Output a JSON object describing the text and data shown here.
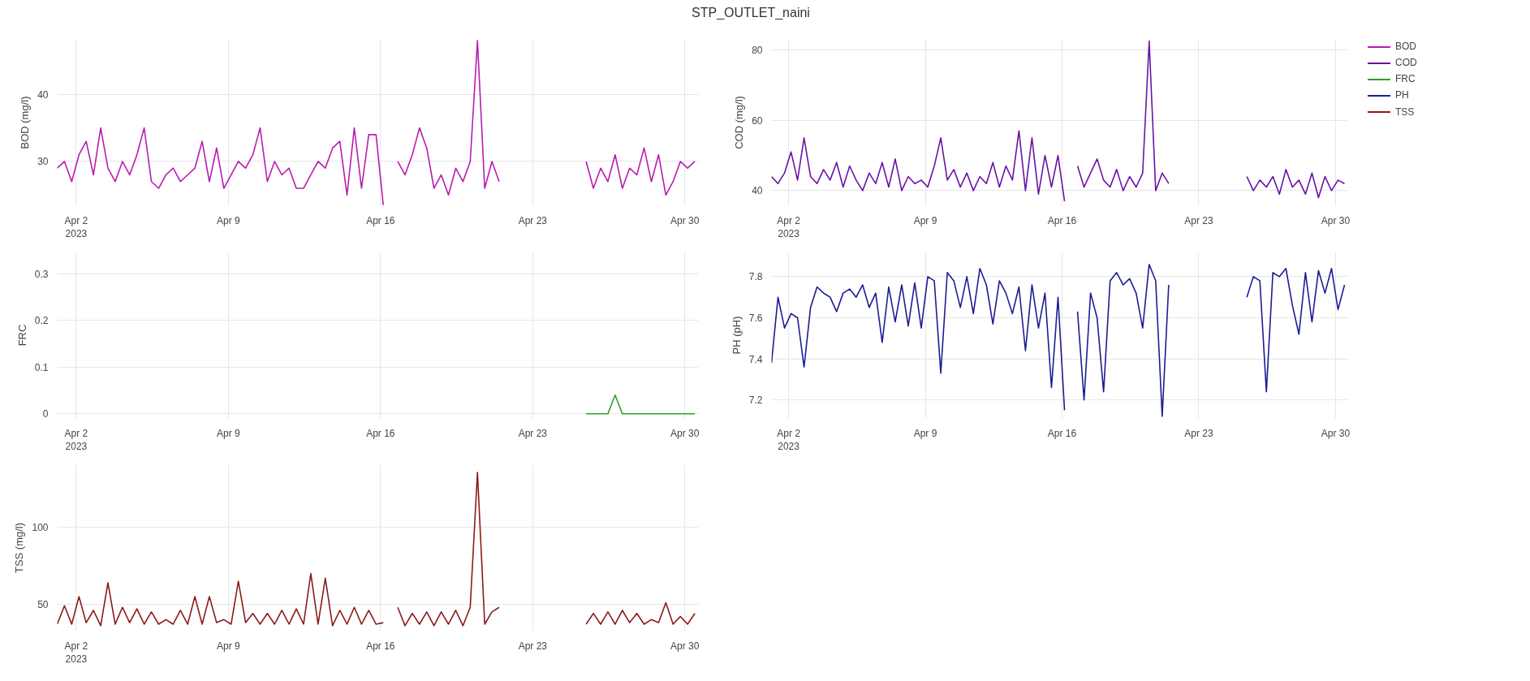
{
  "chart_data": [
    {
      "type": "line",
      "title": "STP_OUTLET_naini",
      "ylabel": "BOD (mg/l)",
      "grid": true,
      "legend": "right",
      "x": [
        "2023-04-01T03:00",
        "2023-04-01T11:00",
        "2023-04-01T19:00",
        "2023-04-02T03:00",
        "2023-04-02T11:00",
        "2023-04-02T19:00",
        "2023-04-03T03:00",
        "2023-04-03T11:00",
        "2023-04-03T19:00",
        "2023-04-04T03:00",
        "2023-04-04T11:00",
        "2023-04-04T19:00",
        "2023-04-05T03:00",
        "2023-04-05T11:00",
        "2023-04-05T19:00",
        "2023-04-06T03:00",
        "2023-04-06T11:00",
        "2023-04-06T19:00",
        "2023-04-07T03:00",
        "2023-04-07T11:00",
        "2023-04-07T19:00",
        "2023-04-08T03:00",
        "2023-04-08T11:00",
        "2023-04-08T19:00",
        "2023-04-09T03:00",
        "2023-04-09T11:00",
        "2023-04-09T19:00",
        "2023-04-10T03:00",
        "2023-04-10T11:00",
        "2023-04-10T19:00",
        "2023-04-11T03:00",
        "2023-04-11T11:00",
        "2023-04-11T19:00",
        "2023-04-12T03:00",
        "2023-04-12T11:00",
        "2023-04-12T19:00",
        "2023-04-13T03:00",
        "2023-04-13T11:00",
        "2023-04-13T19:00",
        "2023-04-14T03:00",
        "2023-04-14T11:00",
        "2023-04-14T19:00",
        "2023-04-15T03:00",
        "2023-04-15T11:00",
        "2023-04-15T19:00",
        "2023-04-16T03:00",
        "2023-04-16T11:00",
        "2023-04-16T19:00",
        "2023-04-17T03:00",
        "2023-04-17T11:00",
        "2023-04-17T19:00",
        "2023-04-18T03:00",
        "2023-04-18T11:00",
        "2023-04-18T19:00",
        "2023-04-19T03:00",
        "2023-04-19T11:00",
        "2023-04-19T19:00",
        "2023-04-20T03:00",
        "2023-04-20T11:00",
        "2023-04-20T19:00",
        "2023-04-21T03:00",
        "2023-04-21T11:00",
        "2023-04-21T19:00",
        "2023-04-25T11:00",
        "2023-04-25T19:00",
        "2023-04-26T03:00",
        "2023-04-26T11:00",
        "2023-04-26T19:00",
        "2023-04-27T03:00",
        "2023-04-27T11:00",
        "2023-04-27T19:00",
        "2023-04-28T03:00",
        "2023-04-28T11:00",
        "2023-04-28T19:00",
        "2023-04-29T03:00",
        "2023-04-29T11:00",
        "2023-04-29T19:00",
        "2023-04-30T03:00",
        "2023-04-30T11:00"
      ],
      "xlim": [
        "2023-04-01T03:00",
        "2023-04-30T15:00"
      ],
      "xticks": [
        {
          "value": "2023-04-02",
          "label": "Apr 2\n2023"
        },
        {
          "value": "2023-04-09",
          "label": "Apr 9"
        },
        {
          "value": "2023-04-16",
          "label": "Apr 16"
        },
        {
          "value": "2023-04-23",
          "label": "Apr 23"
        },
        {
          "value": "2023-04-30",
          "label": "Apr 30"
        }
      ],
      "ylim": [
        23.4,
        48.2
      ],
      "yticks": [
        30,
        40
      ],
      "series": [
        {
          "name": "BOD",
          "color": "#b81cb0",
          "values": [
            29,
            30,
            27,
            31,
            33,
            28,
            35,
            29,
            27,
            30,
            28,
            31,
            35,
            27,
            26,
            28,
            29,
            27,
            28,
            29,
            33,
            27,
            32,
            26,
            28,
            30,
            29,
            31,
            35,
            27,
            30,
            28,
            29,
            26,
            26,
            28,
            30,
            29,
            32,
            33,
            25,
            35,
            26,
            34,
            34,
            23.5,
            null,
            30,
            28,
            31,
            35,
            32,
            26,
            28,
            25,
            29,
            27,
            30,
            48,
            26,
            30,
            27,
            null,
            30,
            26,
            29,
            27,
            31,
            26,
            29,
            28,
            32,
            27,
            31,
            25,
            27,
            30,
            29,
            30
          ]
        }
      ]
    },
    {
      "type": "line",
      "ylabel": "COD (mg/l)",
      "grid": true,
      "legend": "right",
      "x": [
        "2023-04-01T03:00",
        "2023-04-01T11:00",
        "2023-04-01T19:00",
        "2023-04-02T03:00",
        "2023-04-02T11:00",
        "2023-04-02T19:00",
        "2023-04-03T03:00",
        "2023-04-03T11:00",
        "2023-04-03T19:00",
        "2023-04-04T03:00",
        "2023-04-04T11:00",
        "2023-04-04T19:00",
        "2023-04-05T03:00",
        "2023-04-05T11:00",
        "2023-04-05T19:00",
        "2023-04-06T03:00",
        "2023-04-06T11:00",
        "2023-04-06T19:00",
        "2023-04-07T03:00",
        "2023-04-07T11:00",
        "2023-04-07T19:00",
        "2023-04-08T03:00",
        "2023-04-08T11:00",
        "2023-04-08T19:00",
        "2023-04-09T03:00",
        "2023-04-09T11:00",
        "2023-04-09T19:00",
        "2023-04-10T03:00",
        "2023-04-10T11:00",
        "2023-04-10T19:00",
        "2023-04-11T03:00",
        "2023-04-11T11:00",
        "2023-04-11T19:00",
        "2023-04-12T03:00",
        "2023-04-12T11:00",
        "2023-04-12T19:00",
        "2023-04-13T03:00",
        "2023-04-13T11:00",
        "2023-04-13T19:00",
        "2023-04-14T03:00",
        "2023-04-14T11:00",
        "2023-04-14T19:00",
        "2023-04-15T03:00",
        "2023-04-15T11:00",
        "2023-04-15T19:00",
        "2023-04-16T03:00",
        "2023-04-16T11:00",
        "2023-04-16T19:00",
        "2023-04-17T03:00",
        "2023-04-17T11:00",
        "2023-04-17T19:00",
        "2023-04-18T03:00",
        "2023-04-18T11:00",
        "2023-04-18T19:00",
        "2023-04-19T03:00",
        "2023-04-19T11:00",
        "2023-04-19T19:00",
        "2023-04-20T03:00",
        "2023-04-20T11:00",
        "2023-04-20T19:00",
        "2023-04-21T03:00",
        "2023-04-21T11:00",
        "2023-04-21T19:00",
        "2023-04-25T11:00",
        "2023-04-25T19:00",
        "2023-04-26T03:00",
        "2023-04-26T11:00",
        "2023-04-26T19:00",
        "2023-04-27T03:00",
        "2023-04-27T11:00",
        "2023-04-27T19:00",
        "2023-04-28T03:00",
        "2023-04-28T11:00",
        "2023-04-28T19:00",
        "2023-04-29T03:00",
        "2023-04-29T11:00",
        "2023-04-29T19:00",
        "2023-04-30T03:00",
        "2023-04-30T11:00"
      ],
      "xlim": [
        "2023-04-01T03:00",
        "2023-04-30T15:00"
      ],
      "xticks": [
        {
          "value": "2023-04-02",
          "label": "Apr 2\n2023"
        },
        {
          "value": "2023-04-09",
          "label": "Apr 9"
        },
        {
          "value": "2023-04-16",
          "label": "Apr 16"
        },
        {
          "value": "2023-04-23",
          "label": "Apr 23"
        },
        {
          "value": "2023-04-30",
          "label": "Apr 30"
        }
      ],
      "ylim": [
        35.7,
        83
      ],
      "yticks": [
        40,
        60,
        80
      ],
      "series": [
        {
          "name": "COD",
          "color": "#6a12a8",
          "values": [
            44,
            42,
            45,
            51,
            43,
            55,
            44,
            42,
            46,
            43,
            48,
            41,
            47,
            43,
            40,
            45,
            42,
            48,
            41,
            49,
            40,
            44,
            42,
            43,
            41,
            47,
            55,
            43,
            46,
            41,
            45,
            40,
            44,
            42,
            48,
            41,
            47,
            43,
            57,
            40,
            55,
            39,
            50,
            41,
            50,
            37,
            null,
            47,
            41,
            45,
            49,
            43,
            41,
            46,
            40,
            44,
            41,
            45,
            82.5,
            40,
            45,
            42,
            null,
            44,
            40,
            43,
            41,
            44,
            39,
            46,
            41,
            43,
            39,
            45,
            38,
            44,
            40,
            43,
            42
          ]
        }
      ]
    },
    {
      "type": "line",
      "ylabel": "FRC",
      "grid": true,
      "legend": "right",
      "x": [
        "2023-04-25T11:00",
        "2023-04-25T19:00",
        "2023-04-26T03:00",
        "2023-04-26T11:00",
        "2023-04-26T19:00",
        "2023-04-27T03:00",
        "2023-04-27T11:00",
        "2023-04-27T19:00",
        "2023-04-28T03:00",
        "2023-04-28T11:00",
        "2023-04-28T19:00",
        "2023-04-29T03:00",
        "2023-04-29T11:00",
        "2023-04-29T19:00",
        "2023-04-30T03:00",
        "2023-04-30T11:00"
      ],
      "xlim": [
        "2023-04-01T03:00",
        "2023-04-30T15:00"
      ],
      "xticks": [
        {
          "value": "2023-04-02",
          "label": "Apr 2\n2023"
        },
        {
          "value": "2023-04-09",
          "label": "Apr 9"
        },
        {
          "value": "2023-04-16",
          "label": "Apr 16"
        },
        {
          "value": "2023-04-23",
          "label": "Apr 23"
        },
        {
          "value": "2023-04-30",
          "label": "Apr 30"
        }
      ],
      "ylim": [
        -0.01,
        0.347
      ],
      "yticks": [
        0,
        0.1,
        0.2,
        0.3
      ],
      "series": [
        {
          "name": "FRC",
          "color": "#2ca02c",
          "values": [
            0,
            0,
            0,
            0,
            0.04,
            0,
            0,
            0,
            0,
            0,
            0,
            0,
            0,
            0,
            0,
            0
          ]
        }
      ]
    },
    {
      "type": "line",
      "ylabel": "PH (pH)",
      "grid": true,
      "legend": "right",
      "x": [
        "2023-04-01T03:00",
        "2023-04-01T11:00",
        "2023-04-01T19:00",
        "2023-04-02T03:00",
        "2023-04-02T11:00",
        "2023-04-02T19:00",
        "2023-04-03T03:00",
        "2023-04-03T11:00",
        "2023-04-03T19:00",
        "2023-04-04T03:00",
        "2023-04-04T11:00",
        "2023-04-04T19:00",
        "2023-04-05T03:00",
        "2023-04-05T11:00",
        "2023-04-05T19:00",
        "2023-04-06T03:00",
        "2023-04-06T11:00",
        "2023-04-06T19:00",
        "2023-04-07T03:00",
        "2023-04-07T11:00",
        "2023-04-07T19:00",
        "2023-04-08T03:00",
        "2023-04-08T11:00",
        "2023-04-08T19:00",
        "2023-04-09T03:00",
        "2023-04-09T11:00",
        "2023-04-09T19:00",
        "2023-04-10T03:00",
        "2023-04-10T11:00",
        "2023-04-10T19:00",
        "2023-04-11T03:00",
        "2023-04-11T11:00",
        "2023-04-11T19:00",
        "2023-04-12T03:00",
        "2023-04-12T11:00",
        "2023-04-12T19:00",
        "2023-04-13T03:00",
        "2023-04-13T11:00",
        "2023-04-13T19:00",
        "2023-04-14T03:00",
        "2023-04-14T11:00",
        "2023-04-14T19:00",
        "2023-04-15T03:00",
        "2023-04-15T11:00",
        "2023-04-15T19:00",
        "2023-04-16T03:00",
        "2023-04-16T11:00",
        "2023-04-16T19:00",
        "2023-04-17T03:00",
        "2023-04-17T11:00",
        "2023-04-17T19:00",
        "2023-04-18T03:00",
        "2023-04-18T11:00",
        "2023-04-18T19:00",
        "2023-04-19T03:00",
        "2023-04-19T11:00",
        "2023-04-19T19:00",
        "2023-04-20T03:00",
        "2023-04-20T11:00",
        "2023-04-20T19:00",
        "2023-04-21T03:00",
        "2023-04-21T11:00",
        "2023-04-21T19:00",
        "2023-04-25T11:00",
        "2023-04-25T19:00",
        "2023-04-26T03:00",
        "2023-04-26T11:00",
        "2023-04-26T19:00",
        "2023-04-27T03:00",
        "2023-04-27T11:00",
        "2023-04-27T19:00",
        "2023-04-28T03:00",
        "2023-04-28T11:00",
        "2023-04-28T19:00",
        "2023-04-29T03:00",
        "2023-04-29T11:00",
        "2023-04-29T19:00",
        "2023-04-30T03:00",
        "2023-04-30T11:00"
      ],
      "xlim": [
        "2023-04-01T03:00",
        "2023-04-30T15:00"
      ],
      "xticks": [
        {
          "value": "2023-04-02",
          "label": "Apr 2\n2023"
        },
        {
          "value": "2023-04-09",
          "label": "Apr 9"
        },
        {
          "value": "2023-04-16",
          "label": "Apr 16"
        },
        {
          "value": "2023-04-23",
          "label": "Apr 23"
        },
        {
          "value": "2023-04-30",
          "label": "Apr 30"
        }
      ],
      "ylim": [
        7.11,
        7.92
      ],
      "yticks": [
        7.2,
        7.4,
        7.6,
        7.8
      ],
      "series": [
        {
          "name": "PH",
          "color": "#1c1c94",
          "values": [
            7.38,
            7.7,
            7.55,
            7.62,
            7.6,
            7.36,
            7.65,
            7.75,
            7.72,
            7.7,
            7.63,
            7.72,
            7.74,
            7.7,
            7.76,
            7.65,
            7.72,
            7.48,
            7.75,
            7.58,
            7.76,
            7.56,
            7.77,
            7.55,
            7.8,
            7.78,
            7.33,
            7.82,
            7.78,
            7.65,
            7.8,
            7.62,
            7.84,
            7.76,
            7.57,
            7.78,
            7.72,
            7.62,
            7.75,
            7.44,
            7.76,
            7.55,
            7.72,
            7.26,
            7.7,
            7.15,
            null,
            7.63,
            7.2,
            7.72,
            7.6,
            7.24,
            7.78,
            7.82,
            7.76,
            7.79,
            7.72,
            7.55,
            7.86,
            7.78,
            7.12,
            7.76,
            null,
            7.7,
            7.8,
            7.78,
            7.24,
            7.82,
            7.8,
            7.84,
            7.66,
            7.52,
            7.82,
            7.58,
            7.83,
            7.72,
            7.84,
            7.64,
            7.76
          ]
        }
      ]
    },
    {
      "type": "line",
      "ylabel": "TSS (mg/l)",
      "grid": true,
      "legend": "right",
      "x": [
        "2023-04-01T03:00",
        "2023-04-01T11:00",
        "2023-04-01T19:00",
        "2023-04-02T03:00",
        "2023-04-02T11:00",
        "2023-04-02T19:00",
        "2023-04-03T03:00",
        "2023-04-03T11:00",
        "2023-04-03T19:00",
        "2023-04-04T03:00",
        "2023-04-04T11:00",
        "2023-04-04T19:00",
        "2023-04-05T03:00",
        "2023-04-05T11:00",
        "2023-04-05T19:00",
        "2023-04-06T03:00",
        "2023-04-06T11:00",
        "2023-04-06T19:00",
        "2023-04-07T03:00",
        "2023-04-07T11:00",
        "2023-04-07T19:00",
        "2023-04-08T03:00",
        "2023-04-08T11:00",
        "2023-04-08T19:00",
        "2023-04-09T03:00",
        "2023-04-09T11:00",
        "2023-04-09T19:00",
        "2023-04-10T03:00",
        "2023-04-10T11:00",
        "2023-04-10T19:00",
        "2023-04-11T03:00",
        "2023-04-11T11:00",
        "2023-04-11T19:00",
        "2023-04-12T03:00",
        "2023-04-12T11:00",
        "2023-04-12T19:00",
        "2023-04-13T03:00",
        "2023-04-13T11:00",
        "2023-04-13T19:00",
        "2023-04-14T03:00",
        "2023-04-14T11:00",
        "2023-04-14T19:00",
        "2023-04-15T03:00",
        "2023-04-15T11:00",
        "2023-04-15T19:00",
        "2023-04-16T03:00",
        "2023-04-16T11:00",
        "2023-04-16T19:00",
        "2023-04-17T03:00",
        "2023-04-17T11:00",
        "2023-04-17T19:00",
        "2023-04-18T03:00",
        "2023-04-18T11:00",
        "2023-04-18T19:00",
        "2023-04-19T03:00",
        "2023-04-19T11:00",
        "2023-04-19T19:00",
        "2023-04-20T03:00",
        "2023-04-20T11:00",
        "2023-04-20T19:00",
        "2023-04-21T03:00",
        "2023-04-21T11:00",
        "2023-04-21T19:00",
        "2023-04-25T11:00",
        "2023-04-25T19:00",
        "2023-04-26T03:00",
        "2023-04-26T11:00",
        "2023-04-26T19:00",
        "2023-04-27T03:00",
        "2023-04-27T11:00",
        "2023-04-27T19:00",
        "2023-04-28T03:00",
        "2023-04-28T11:00",
        "2023-04-28T19:00",
        "2023-04-29T03:00",
        "2023-04-29T11:00",
        "2023-04-29T19:00",
        "2023-04-30T03:00",
        "2023-04-30T11:00"
      ],
      "xlim": [
        "2023-04-01T03:00",
        "2023-04-30T15:00"
      ],
      "xticks": [
        {
          "value": "2023-04-02",
          "label": "Apr 2\n2023"
        },
        {
          "value": "2023-04-09",
          "label": "Apr 9"
        },
        {
          "value": "2023-04-16",
          "label": "Apr 16"
        },
        {
          "value": "2023-04-23",
          "label": "Apr 23"
        },
        {
          "value": "2023-04-30",
          "label": "Apr 30"
        }
      ],
      "ylim": [
        32.5,
        141
      ],
      "yticks": [
        50,
        100
      ],
      "series": [
        {
          "name": "TSS",
          "color": "#8b1a1a",
          "values": [
            37,
            49,
            37,
            55,
            38,
            46,
            36,
            64,
            37,
            48,
            38,
            47,
            37,
            45,
            37,
            40,
            37,
            46,
            37,
            55,
            37,
            55,
            38,
            40,
            37,
            65,
            38,
            44,
            37,
            44,
            37,
            46,
            37,
            47,
            37,
            70,
            37,
            67,
            36,
            46,
            37,
            48,
            37,
            46,
            37,
            38,
            null,
            48,
            36,
            44,
            37,
            45,
            36,
            45,
            37,
            46,
            36,
            48,
            136,
            37,
            45,
            48,
            null,
            37,
            44,
            37,
            45,
            37,
            46,
            38,
            44,
            37,
            40,
            38,
            51,
            37,
            42,
            37,
            44
          ]
        }
      ]
    }
  ]
}
